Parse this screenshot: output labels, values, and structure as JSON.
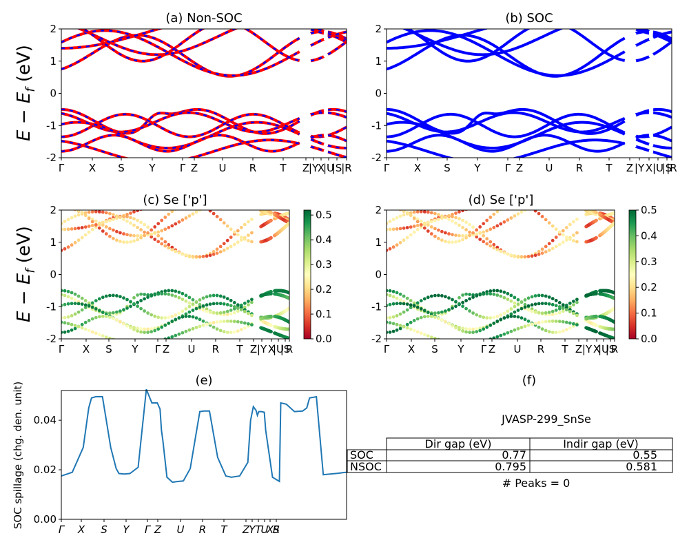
{
  "chart_data": [
    {
      "id": "a",
      "type": "line",
      "title": "(a) Non-SOC",
      "ylabel": "E − E_f (eV)",
      "ylim": [
        -2,
        2
      ],
      "yticks": [
        -2,
        -1,
        0,
        1,
        2
      ],
      "xtick_labels": [
        "Γ",
        "X",
        "S",
        "Y",
        "Γ",
        "Z",
        "U",
        "R",
        "T",
        "Z",
        "|Y",
        "X",
        "|U",
        "|S",
        "|R"
      ],
      "series": [
        {
          "name": "Non-SOC",
          "color": "#ff0000",
          "style": "solid"
        },
        {
          "name": "SOC overlay",
          "color": "#0000ff",
          "style": "dashed"
        }
      ]
    },
    {
      "id": "b",
      "type": "line",
      "title": "(b) SOC",
      "ylim": [
        -2,
        2
      ],
      "yticks": [
        -2,
        -1,
        0,
        1,
        2
      ],
      "xtick_labels": [
        "Γ",
        "X",
        "S",
        "Y",
        "Γ",
        "Z",
        "U",
        "R",
        "T",
        "Z",
        "|Y",
        "X",
        "|U",
        "|S",
        "|R"
      ],
      "series": [
        {
          "name": "SOC",
          "color": "#0000ff",
          "style": "solid"
        }
      ]
    },
    {
      "id": "c",
      "type": "scatter",
      "title": "(c)  Se ['p']",
      "ylabel": "E − E_f (eV)",
      "ylim": [
        -2,
        2
      ],
      "yticks": [
        -2,
        -1,
        0,
        1,
        2
      ],
      "xtick_labels": [
        "Γ",
        "X",
        "S",
        "Y",
        "Γ",
        "Z",
        "U",
        "R",
        "T",
        "Z",
        "|Y",
        "X",
        "|U",
        "|S",
        "R"
      ],
      "colorbar": {
        "cmap": "RdYlGn",
        "min": 0.0,
        "max": 0.52,
        "ticks": [
          "0.0",
          "0.1",
          "0.2",
          "0.3",
          "0.4",
          "0.5"
        ]
      }
    },
    {
      "id": "d",
      "type": "scatter",
      "title": "(d) Se ['p']",
      "ylim": [
        -2,
        2
      ],
      "yticks": [
        -2,
        -1,
        0,
        1,
        2
      ],
      "xtick_labels": [
        "Γ",
        "X",
        "S",
        "Y",
        "Γ",
        "Z",
        "U",
        "R",
        "T",
        "Z",
        "|Y",
        "X",
        "|U",
        "|S",
        "R"
      ],
      "colorbar": {
        "cmap": "RdYlGn",
        "min": 0.0,
        "max": 0.5,
        "ticks": [
          "0.0",
          "0.1",
          "0.2",
          "0.3",
          "0.4",
          "0.5"
        ]
      }
    },
    {
      "id": "e",
      "type": "line",
      "title": "(e)",
      "ylabel": "SOC spillage (chg. den. unit)",
      "ylim": [
        0,
        0.052
      ],
      "yticks": [
        0.0,
        0.02,
        0.04
      ],
      "ytick_labels": [
        "0.00",
        "0.02",
        "0.04"
      ],
      "xtick_labels": [
        "Γ",
        "X",
        "S",
        "Y",
        "Γ",
        "Z",
        "U",
        "R",
        "T",
        "Z",
        "Y",
        "T",
        "U",
        "X",
        "S",
        "R"
      ],
      "x": [
        0,
        0.4,
        0.8,
        1.0,
        1.1,
        1.25,
        1.5,
        1.8,
        2.0,
        2.1,
        2.3,
        2.5,
        2.8,
        3.1,
        3.3,
        3.4,
        3.5,
        3.6,
        3.65,
        3.7,
        3.85,
        4.0,
        4.05,
        4.2,
        4.45,
        4.7,
        5.05,
        5.2,
        5.4,
        5.7,
        6.0,
        6.2,
        6.5,
        6.8,
        6.9,
        7.0,
        7.1,
        7.15,
        7.2,
        7.3,
        7.4,
        7.45,
        7.7,
        7.95,
        8.0,
        8.2,
        8.5,
        8.8,
        8.95,
        9.05,
        9.3,
        9.55,
        9.8,
        10.1,
        10.3,
        10.4
      ],
      "values": [
        0.0175,
        0.019,
        0.029,
        0.045,
        0.049,
        0.0495,
        0.0495,
        0.029,
        0.0205,
        0.0185,
        0.0183,
        0.0185,
        0.021,
        0.0525,
        0.047,
        0.047,
        0.047,
        0.0445,
        0.036,
        0.032,
        0.017,
        0.0155,
        0.015,
        0.0152,
        0.0155,
        0.0205,
        0.0435,
        0.0437,
        0.0437,
        0.025,
        0.0175,
        0.017,
        0.0175,
        0.023,
        0.04,
        0.0455,
        0.044,
        0.042,
        0.0435,
        0.0435,
        0.0432,
        0.036,
        0.017,
        0.0153,
        0.047,
        0.0465,
        0.0435,
        0.0437,
        0.045,
        0.049,
        0.0495,
        0.018,
        0.0183,
        0.0186,
        0.0189,
        0.019
      ],
      "color": "#1f77b4"
    }
  ],
  "panel_f": {
    "title": "(f)",
    "material": "JVASP-299_SnSe",
    "headers": [
      "Dir gap (eV)",
      "Indir gap (eV)"
    ],
    "rows": [
      {
        "label": "SOC",
        "dir": "0.77",
        "indir": "0.55"
      },
      {
        "label": "NSOC",
        "dir": "0.795",
        "indir": "0.581"
      }
    ],
    "peaks": "# Peaks = 0"
  }
}
